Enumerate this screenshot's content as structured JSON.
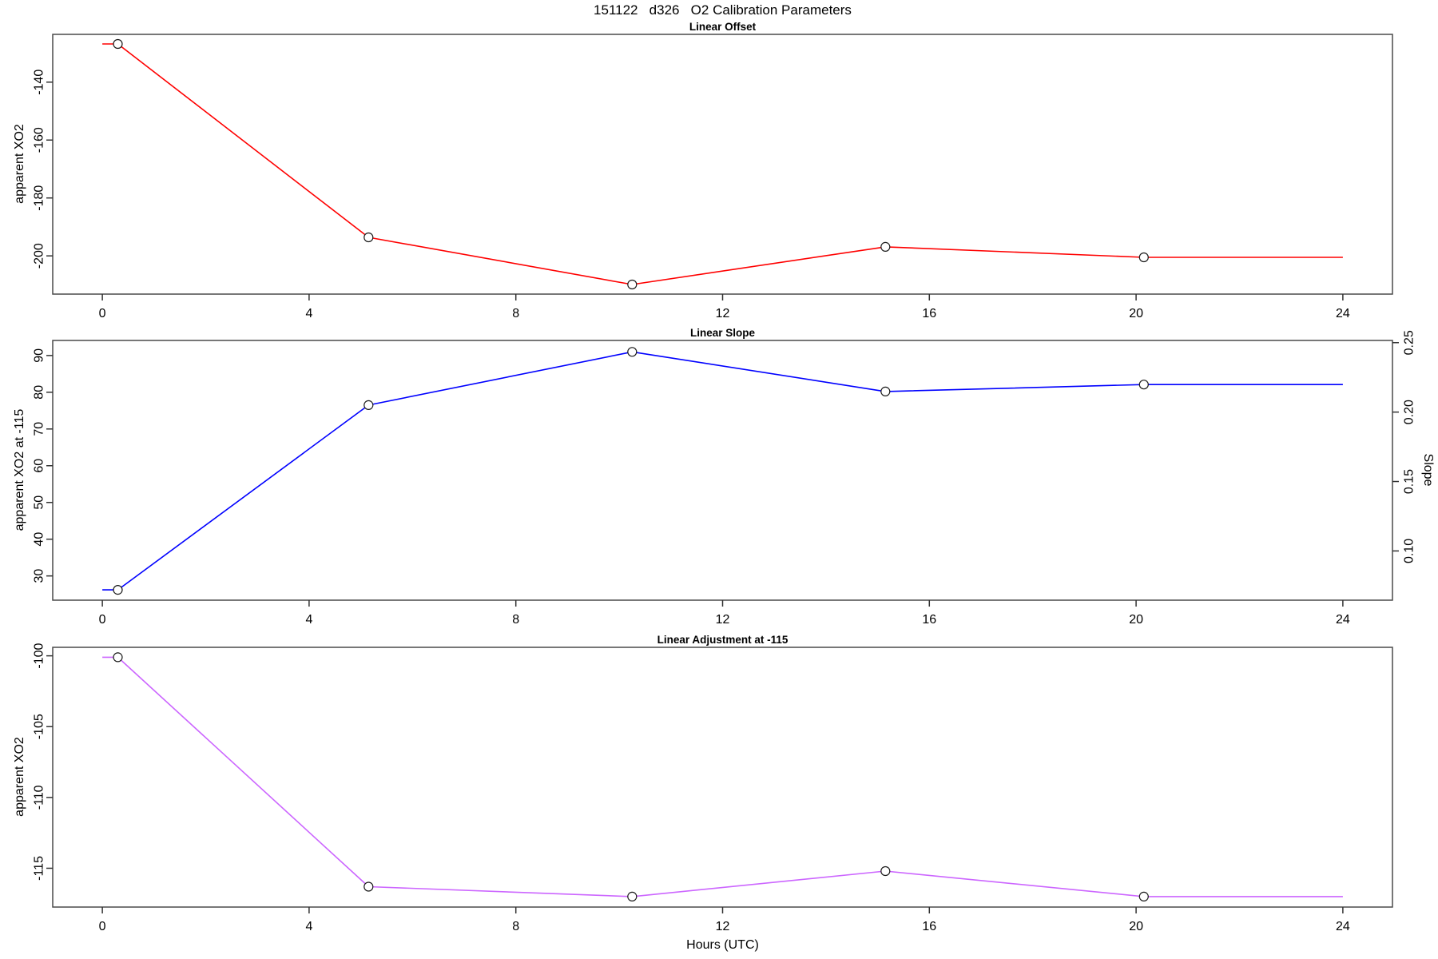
{
  "page_title": "151122   d326   O2 Calibration Parameters",
  "x_axis": {
    "label": "Hours (UTC)",
    "ticks": [
      0,
      4,
      8,
      12,
      16,
      20,
      24
    ],
    "plot_range": [
      -0.96,
      24.96
    ],
    "data_range": [
      0,
      24
    ]
  },
  "measurement_times_utc_hours": [
    0.3,
    5.15,
    10.25,
    15.15,
    20.15
  ],
  "chart_data": [
    {
      "type": "line",
      "title": "Linear Offset",
      "ylabel": "apparent XO2",
      "color": "#ff0000",
      "x": [
        0.3,
        5.15,
        10.25,
        15.15,
        20.15
      ],
      "y": [
        -126.8,
        -193.6,
        -209.9,
        -196.9,
        -200.5
      ],
      "yticks": [
        -140,
        -160,
        -180,
        -200
      ],
      "ylim": [
        -213.2,
        -123.5
      ],
      "extend_to_x": [
        0,
        24
      ],
      "marker": "open-circle",
      "grid": false,
      "legend": "none"
    },
    {
      "type": "line",
      "title": "Linear Slope",
      "ylabel": "apparent XO2 at -115",
      "color": "#0000ff",
      "x": [
        0.3,
        5.15,
        10.25,
        15.15,
        20.15
      ],
      "y": [
        26.2,
        76.5,
        91.0,
        80.2,
        82.1
      ],
      "yticks": [
        30,
        40,
        50,
        60,
        70,
        80,
        90
      ],
      "ylim": [
        23.4,
        94.1
      ],
      "extend_to_x": [
        0,
        24
      ],
      "marker": "open-circle",
      "grid": false,
      "legend": "none",
      "right_axis": {
        "label": "Slope",
        "ticks": [
          0.25,
          0.2,
          0.15,
          0.1
        ],
        "tick_left_equiv": [
          93.5,
          74.6,
          55.7,
          36.8
        ],
        "point_values_estimated": [
          0.072,
          0.205,
          0.243,
          0.215,
          0.22
        ]
      }
    },
    {
      "type": "line",
      "title": "Linear Adjustment at -115",
      "ylabel": "apparent XO2",
      "color": "#cc66ff",
      "x": [
        0.3,
        5.15,
        10.25,
        15.15,
        20.15
      ],
      "y": [
        -100.1,
        -116.3,
        -117.0,
        -115.2,
        -117.0
      ],
      "yticks": [
        -100,
        -105,
        -110,
        -115
      ],
      "ylim": [
        -117.74,
        -99.4
      ],
      "extend_to_x": [
        0,
        24
      ],
      "marker": "open-circle",
      "grid": false,
      "legend": "none"
    }
  ]
}
